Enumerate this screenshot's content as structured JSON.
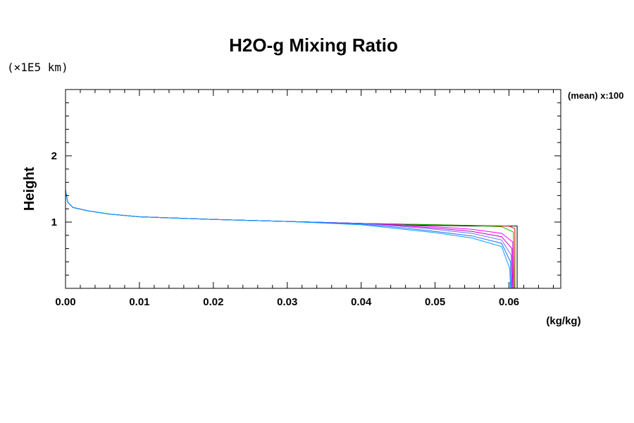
{
  "chart_data": {
    "type": "line",
    "title": "H2O-g Mixing Ratio",
    "ylabel": "Height",
    "yscale_label": "(×1E5 km)",
    "xunit": "(kg/kg)",
    "annotation": "(mean) x:100",
    "xlim": [
      0.0,
      0.067
    ],
    "ylim": [
      0.0,
      3.0
    ],
    "xticks": [
      "0.00",
      "0.01",
      "0.02",
      "0.03",
      "0.04",
      "0.05",
      "0.06"
    ],
    "xtick_values": [
      0.0,
      0.01,
      0.02,
      0.03,
      0.04,
      0.05,
      0.06
    ],
    "yticks": [
      "1",
      "2"
    ],
    "ytick_values": [
      1,
      2
    ],
    "grid": false,
    "series": [
      {
        "color": "#000000",
        "points": [
          [
            0.0,
            1.48
          ],
          [
            0.0003,
            1.3
          ],
          [
            0.001,
            1.22
          ],
          [
            0.003,
            1.17
          ],
          [
            0.006,
            1.12
          ],
          [
            0.01,
            1.08
          ],
          [
            0.02,
            1.04
          ],
          [
            0.03,
            1.01
          ],
          [
            0.04,
            0.98
          ],
          [
            0.045,
            0.96
          ],
          [
            0.05,
            0.95
          ],
          [
            0.055,
            0.94
          ],
          [
            0.06,
            0.94
          ],
          [
            0.0611,
            0.94
          ],
          [
            0.0611,
            0.0
          ]
        ]
      },
      {
        "color": "#ff0000",
        "points": [
          [
            0.0,
            1.48
          ],
          [
            0.0003,
            1.3
          ],
          [
            0.001,
            1.22
          ],
          [
            0.003,
            1.17
          ],
          [
            0.006,
            1.12
          ],
          [
            0.01,
            1.08
          ],
          [
            0.02,
            1.04
          ],
          [
            0.03,
            1.01
          ],
          [
            0.04,
            0.98
          ],
          [
            0.045,
            0.97
          ],
          [
            0.05,
            0.96
          ],
          [
            0.055,
            0.95
          ],
          [
            0.06,
            0.94
          ],
          [
            0.0608,
            0.9
          ],
          [
            0.0608,
            0.0
          ]
        ]
      },
      {
        "color": "#00c000",
        "points": [
          [
            0.0,
            1.48
          ],
          [
            0.0003,
            1.3
          ],
          [
            0.001,
            1.22
          ],
          [
            0.003,
            1.17
          ],
          [
            0.006,
            1.12
          ],
          [
            0.01,
            1.08
          ],
          [
            0.02,
            1.04
          ],
          [
            0.03,
            1.01
          ],
          [
            0.04,
            0.98
          ],
          [
            0.045,
            0.97
          ],
          [
            0.05,
            0.96
          ],
          [
            0.055,
            0.95
          ],
          [
            0.059,
            0.93
          ],
          [
            0.0606,
            0.85
          ],
          [
            0.0607,
            0.0
          ]
        ]
      },
      {
        "color": "#ff00ff",
        "points": [
          [
            0.0,
            1.48
          ],
          [
            0.0003,
            1.3
          ],
          [
            0.001,
            1.22
          ],
          [
            0.003,
            1.17
          ],
          [
            0.006,
            1.12
          ],
          [
            0.01,
            1.08
          ],
          [
            0.02,
            1.04
          ],
          [
            0.03,
            1.01
          ],
          [
            0.04,
            0.98
          ],
          [
            0.045,
            0.96
          ],
          [
            0.05,
            0.93
          ],
          [
            0.055,
            0.89
          ],
          [
            0.059,
            0.83
          ],
          [
            0.0605,
            0.7
          ],
          [
            0.0606,
            0.0
          ]
        ]
      },
      {
        "color": "#c000c0",
        "points": [
          [
            0.0,
            1.48
          ],
          [
            0.0003,
            1.3
          ],
          [
            0.001,
            1.22
          ],
          [
            0.003,
            1.17
          ],
          [
            0.006,
            1.12
          ],
          [
            0.01,
            1.08
          ],
          [
            0.02,
            1.04
          ],
          [
            0.03,
            1.01
          ],
          [
            0.04,
            0.98
          ],
          [
            0.045,
            0.95
          ],
          [
            0.05,
            0.91
          ],
          [
            0.055,
            0.86
          ],
          [
            0.059,
            0.78
          ],
          [
            0.0604,
            0.6
          ],
          [
            0.0605,
            0.0
          ]
        ]
      },
      {
        "color": "#7070ff",
        "points": [
          [
            0.0,
            1.48
          ],
          [
            0.0003,
            1.3
          ],
          [
            0.001,
            1.22
          ],
          [
            0.003,
            1.17
          ],
          [
            0.006,
            1.12
          ],
          [
            0.01,
            1.08
          ],
          [
            0.02,
            1.04
          ],
          [
            0.03,
            1.01
          ],
          [
            0.04,
            0.98
          ],
          [
            0.045,
            0.94
          ],
          [
            0.05,
            0.89
          ],
          [
            0.055,
            0.83
          ],
          [
            0.059,
            0.73
          ],
          [
            0.0603,
            0.5
          ],
          [
            0.0604,
            0.0
          ]
        ]
      },
      {
        "color": "#1e6eff",
        "points": [
          [
            0.0,
            1.48
          ],
          [
            0.0003,
            1.3
          ],
          [
            0.001,
            1.22
          ],
          [
            0.003,
            1.17
          ],
          [
            0.006,
            1.12
          ],
          [
            0.01,
            1.08
          ],
          [
            0.02,
            1.04
          ],
          [
            0.03,
            1.01
          ],
          [
            0.04,
            0.97
          ],
          [
            0.045,
            0.92
          ],
          [
            0.05,
            0.86
          ],
          [
            0.055,
            0.79
          ],
          [
            0.059,
            0.68
          ],
          [
            0.0602,
            0.4
          ],
          [
            0.0603,
            0.0
          ]
        ]
      },
      {
        "color": "#00a0ff",
        "points": [
          [
            0.0,
            1.48
          ],
          [
            0.0003,
            1.3
          ],
          [
            0.001,
            1.22
          ],
          [
            0.003,
            1.17
          ],
          [
            0.006,
            1.12
          ],
          [
            0.01,
            1.08
          ],
          [
            0.02,
            1.04
          ],
          [
            0.03,
            1.01
          ],
          [
            0.04,
            0.96
          ],
          [
            0.045,
            0.9
          ],
          [
            0.05,
            0.84
          ],
          [
            0.055,
            0.76
          ],
          [
            0.059,
            0.63
          ],
          [
            0.0601,
            0.3
          ],
          [
            0.0602,
            0.0
          ]
        ]
      }
    ]
  }
}
